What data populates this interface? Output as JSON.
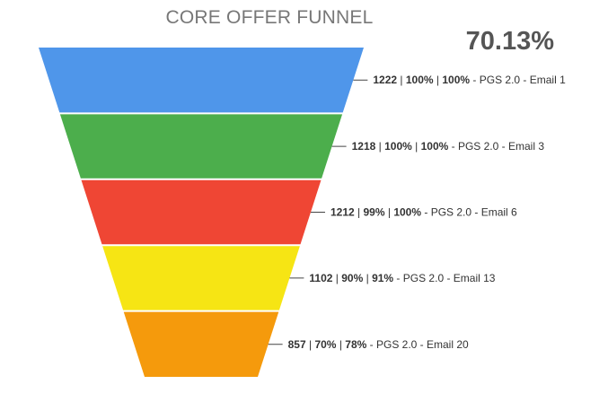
{
  "chart_data": {
    "type": "funnel",
    "title": "CORE OFFER FUNNEL",
    "summary_value": "70.13%",
    "stages": [
      {
        "name": "PGS 2.0 - Email 1",
        "value": 1222,
        "pct_of_first": "100%",
        "pct_of_previous": "100%",
        "color": "#4f96ea"
      },
      {
        "name": "PGS 2.0 - Email 3",
        "value": 1218,
        "pct_of_first": "100%",
        "pct_of_previous": "100%",
        "color": "#4cae4c"
      },
      {
        "name": "PGS 2.0 - Email 6",
        "value": 1212,
        "pct_of_first": "99%",
        "pct_of_previous": "100%",
        "color": "#ef4634"
      },
      {
        "name": "PGS 2.0 - Email 13",
        "value": 1102,
        "pct_of_first": "90%",
        "pct_of_previous": "91%",
        "color": "#f6e514"
      },
      {
        "name": "PGS 2.0 - Email 20",
        "value": 857,
        "pct_of_first": "70%",
        "pct_of_previous": "78%",
        "color": "#f59a0c"
      }
    ]
  }
}
